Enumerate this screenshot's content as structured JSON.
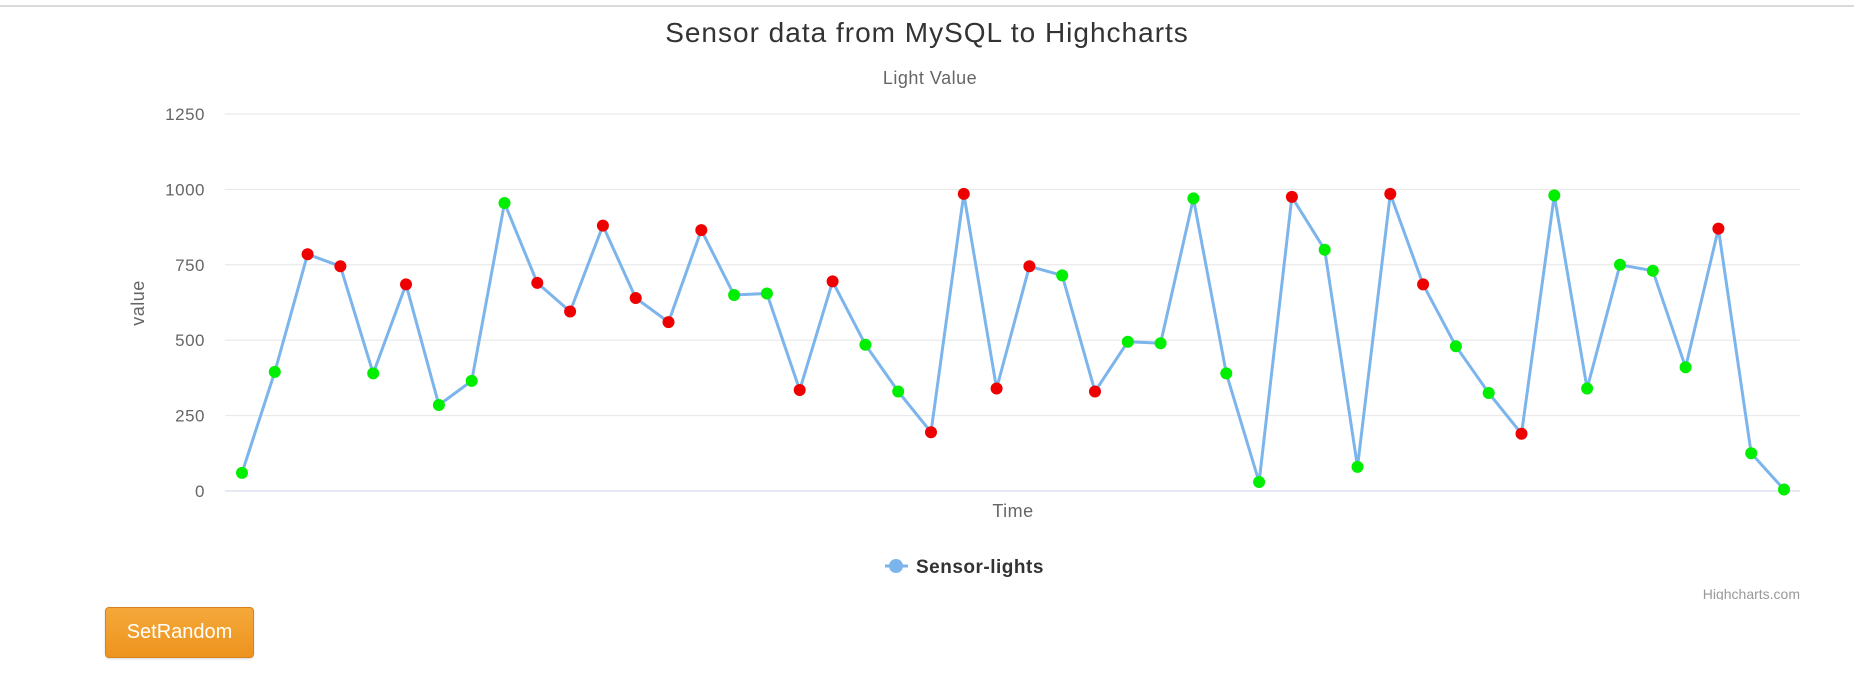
{
  "chart_data": {
    "type": "line",
    "title": "Sensor data from MySQL to Highcharts",
    "subtitle": "Light Value",
    "xlabel": "Time",
    "ylabel": "value",
    "ylim": [
      0,
      1250
    ],
    "y_ticks": [
      0,
      250,
      500,
      750,
      1000,
      1250
    ],
    "grid": true,
    "legend": {
      "position": "bottom-center",
      "entries": [
        "Sensor-lights"
      ]
    },
    "credits": "Highcharts.com",
    "colors": {
      "line": "#7cb5ec",
      "high": "#ee0000",
      "low": "#00ee00"
    },
    "series": [
      {
        "name": "Sensor-lights",
        "values": [
          60,
          395,
          785,
          745,
          390,
          685,
          285,
          365,
          955,
          690,
          595,
          880,
          640,
          560,
          865,
          650,
          655,
          335,
          695,
          485,
          330,
          195,
          985,
          340,
          745,
          715,
          330,
          495,
          490,
          970,
          390,
          30,
          975,
          800,
          80,
          985,
          685,
          480,
          325,
          190,
          980,
          340,
          750,
          730,
          410,
          870,
          125,
          5
        ],
        "point_status": [
          "low",
          "low",
          "high",
          "high",
          "low",
          "high",
          "low",
          "low",
          "low",
          "high",
          "high",
          "high",
          "high",
          "high",
          "high",
          "low",
          "low",
          "high",
          "high",
          "low",
          "low",
          "high",
          "high",
          "high",
          "high",
          "low",
          "high",
          "low",
          "low",
          "low",
          "low",
          "low",
          "high",
          "low",
          "low",
          "high",
          "high",
          "low",
          "low",
          "high",
          "low",
          "low",
          "low",
          "low",
          "low",
          "high",
          "low",
          "low"
        ]
      }
    ]
  },
  "controls": {
    "set_random_label": "SetRandom"
  }
}
